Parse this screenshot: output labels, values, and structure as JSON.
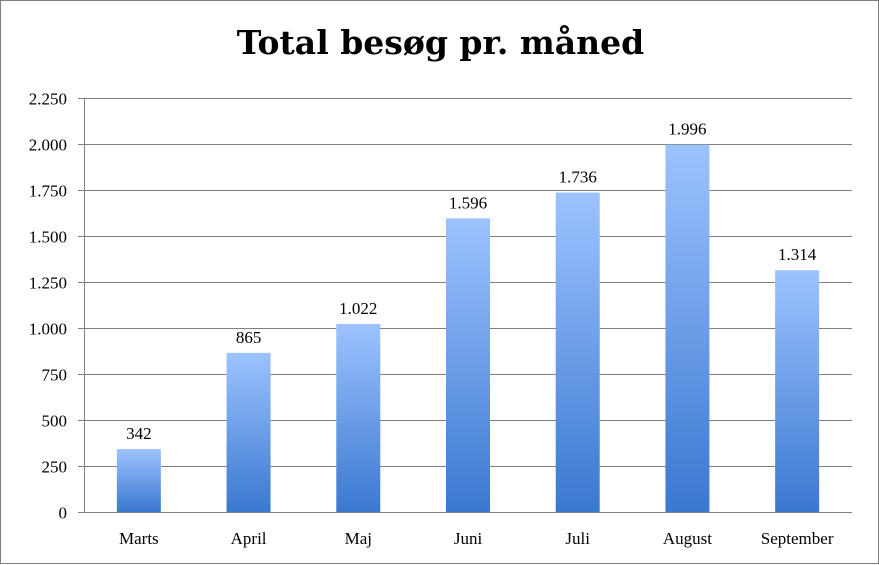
{
  "chart_data": {
    "type": "bar",
    "title": "Total besøg pr. måned",
    "categories": [
      "Marts",
      "April",
      "Maj",
      "Juni",
      "Juli",
      "August",
      "September"
    ],
    "values": [
      342,
      865,
      1022,
      1596,
      1736,
      1996,
      1314
    ],
    "data_labels": [
      "342",
      "865",
      "1.022",
      "1.596",
      "1.736",
      "1.996",
      "1.314"
    ],
    "yticks": [
      0,
      250,
      500,
      750,
      1000,
      1250,
      1500,
      1750,
      2000,
      2250
    ],
    "ytick_labels": [
      "0",
      "250",
      "500",
      "750",
      "1.000",
      "1.250",
      "1.500",
      "1.750",
      "2.000",
      "2.250"
    ],
    "ylim": [
      0,
      2250
    ],
    "grid": true,
    "legend": "none",
    "colors": {
      "bar_top": "#9dc3ff",
      "bar_bottom": "#3a78d0",
      "grid": "#808080"
    }
  }
}
